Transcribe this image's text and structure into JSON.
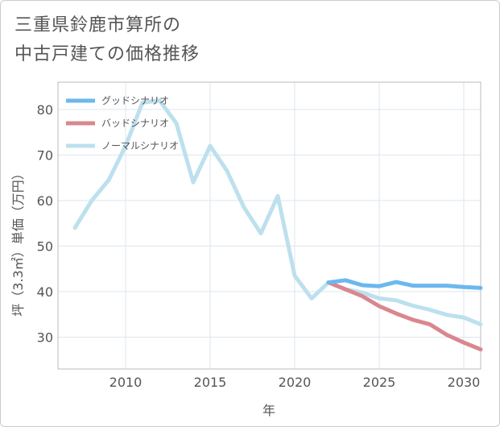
{
  "chart_data": {
    "type": "line",
    "title_lines": [
      "三重県鈴鹿市算所の",
      "中古戸建ての価格推移"
    ],
    "xlabel": "年",
    "ylabel": "坪（3.3㎡）単価（万円）",
    "xlim": [
      2006,
      2031
    ],
    "ylim": [
      23,
      86
    ],
    "xticks": [
      2010,
      2015,
      2020,
      2025,
      2030
    ],
    "yticks": [
      30,
      40,
      50,
      60,
      70,
      80
    ],
    "grid": true,
    "legend_position": "top-left",
    "series": [
      {
        "name": "グッドシナリオ",
        "color": "#6cb8ee",
        "x": [
          2022,
          2023,
          2024,
          2025,
          2026,
          2027,
          2028,
          2029,
          2030,
          2031
        ],
        "y": [
          42.0,
          42.5,
          41.4,
          41.2,
          42.1,
          41.3,
          41.3,
          41.3,
          41.0,
          40.8
        ]
      },
      {
        "name": "バッドシナリオ",
        "color": "#d9878f",
        "x": [
          2022,
          2023,
          2024,
          2025,
          2026,
          2027,
          2028,
          2029,
          2030,
          2031
        ],
        "y": [
          42.0,
          40.5,
          39.0,
          36.8,
          35.2,
          33.8,
          32.8,
          30.5,
          28.8,
          27.3
        ]
      },
      {
        "name": "ノーマルシナリオ",
        "color": "#bde0ee",
        "x": [
          2007,
          2008,
          2009,
          2010,
          2011,
          2012,
          2013,
          2014,
          2015,
          2016,
          2017,
          2018,
          2019,
          2020,
          2021,
          2022,
          2023,
          2024,
          2025,
          2026,
          2027,
          2028,
          2029,
          2030,
          2031
        ],
        "y": [
          54.0,
          60.0,
          64.5,
          72.0,
          81.5,
          82.0,
          77.0,
          64.0,
          72.0,
          66.5,
          58.5,
          52.8,
          61.0,
          43.5,
          38.5,
          42.0,
          40.5,
          39.8,
          38.5,
          38.1,
          36.9,
          36.0,
          34.9,
          34.3,
          32.8
        ]
      }
    ]
  }
}
